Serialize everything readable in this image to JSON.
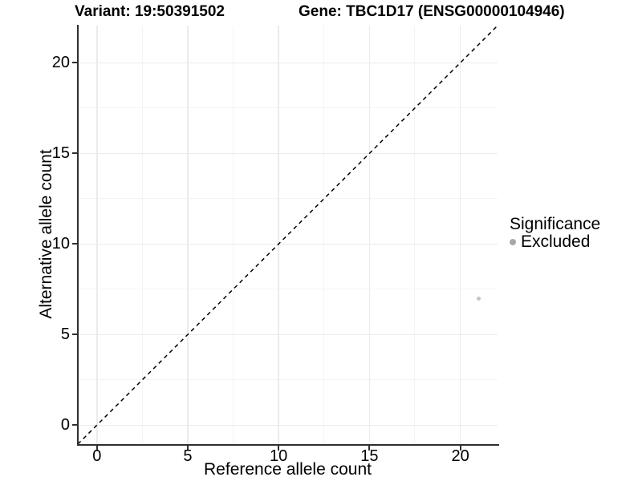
{
  "chart_data": {
    "type": "scatter",
    "titles": {
      "left": "Variant: 19:50391502",
      "right": "Gene: TBC1D17 (ENSG00000104946)"
    },
    "xlabel": "Reference allele count",
    "ylabel": "Alternative allele count",
    "xlim": [
      -1.05,
      22.05
    ],
    "ylim": [
      -1.05,
      22.05
    ],
    "x_major_ticks": [
      0,
      5,
      10,
      15,
      20
    ],
    "y_major_ticks": [
      0,
      5,
      10,
      15,
      20
    ],
    "x_minor_ticks": [
      2.5,
      7.5,
      12.5,
      17.5
    ],
    "y_minor_ticks": [
      2.5,
      7.5,
      12.5,
      17.5
    ],
    "grid": "major and minor gridlines, no panel border, axis lines left and bottom",
    "reference_line": {
      "type": "identity",
      "slope": 1,
      "intercept": 0,
      "linestyle": "dashed",
      "color": "#000000"
    },
    "series": [
      {
        "name": "Excluded",
        "color": "#c4c4c4",
        "points": [
          {
            "x": 21,
            "y": 7
          }
        ]
      }
    ],
    "legend": {
      "title": "Significance",
      "position": "right",
      "items": [
        {
          "label": "Excluded",
          "color": "#a8a8a8"
        }
      ]
    },
    "colors": {
      "background": "#ffffff",
      "grid_major": "#ebebeb",
      "grid_minor": "#f4f4f4",
      "axis_line": "#2f2f2f",
      "text": "#000000"
    }
  }
}
